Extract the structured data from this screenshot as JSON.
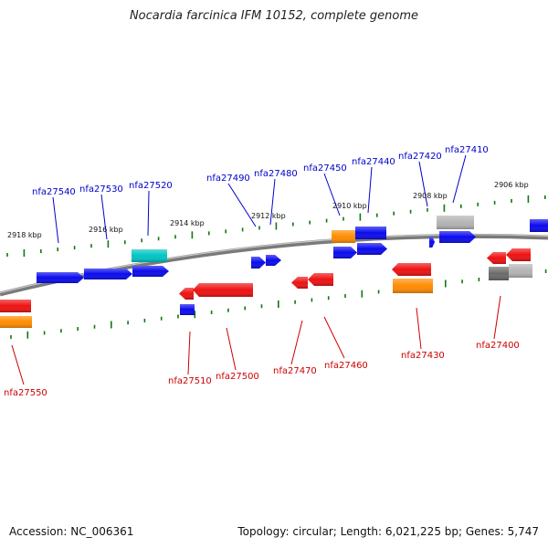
{
  "title": "Nocardia farcinica IFM 10152, complete genome",
  "footer": {
    "accession": "Accession: NC_006361",
    "topology": "Topology: circular; Length: 6,021,225 bp; Genes: 5,747"
  },
  "colors": {
    "forward": "#0a0aee",
    "reverse": "#ee1111",
    "orange": "#ff8c00",
    "cyan": "#00c4c4",
    "gray": "#b4b4b4",
    "darkgray": "#6a6a6a",
    "tick": "#117711",
    "label_forward": "#0000cc",
    "label_reverse": "#cc0000"
  },
  "scale_labels": [
    "2918 kbp",
    "2916 kbp",
    "2914 kbp",
    "2912 kbp",
    "2910 kbp",
    "2908 kbp",
    "2906 kbp"
  ],
  "gene_labels_top": [
    "nfa27540",
    "nfa27530",
    "nfa27520",
    "nfa27490",
    "nfa27480",
    "nfa27450",
    "nfa27440",
    "nfa27420",
    "nfa27410"
  ],
  "gene_labels_bottom": [
    "nfa27550",
    "nfa27510",
    "nfa27500",
    "nfa27470",
    "nfa27460",
    "nfa27430",
    "nfa27400"
  ]
}
